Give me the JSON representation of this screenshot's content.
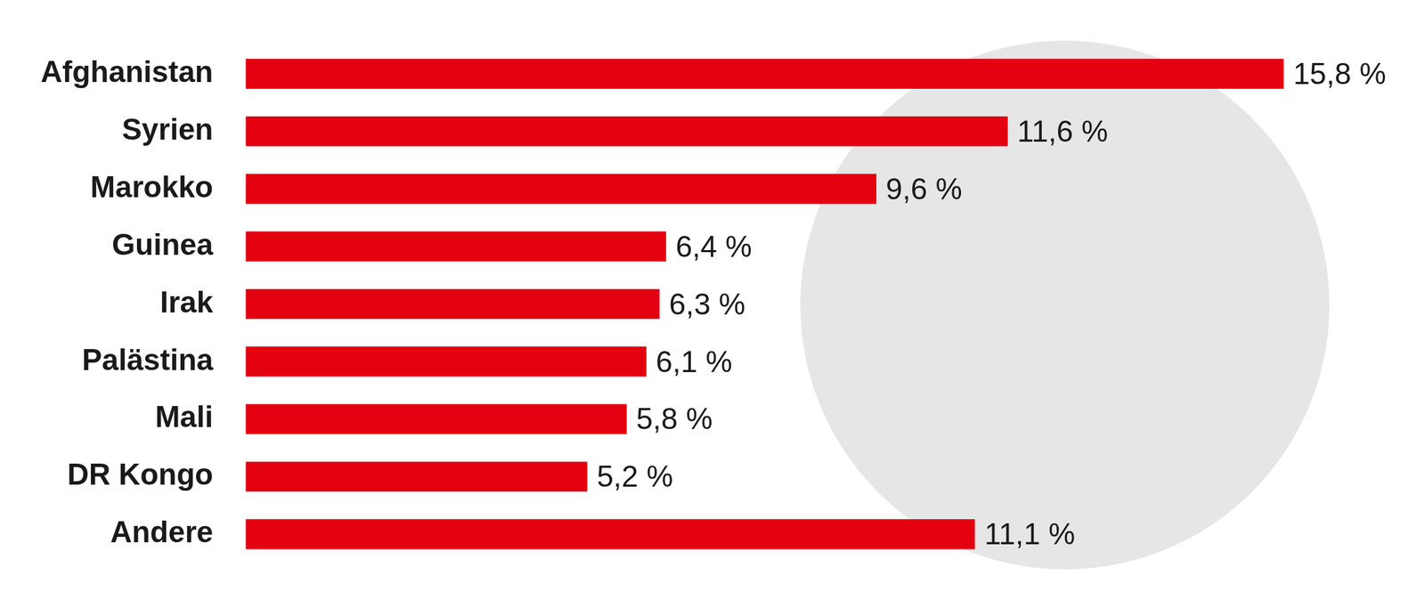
{
  "chart_data": {
    "type": "bar",
    "orientation": "horizontal",
    "categories": [
      "Afghanistan",
      "Syrien",
      "Marokko",
      "Guinea",
      "Irak",
      "Palästina",
      "Mali",
      "DR Kongo",
      "Andere"
    ],
    "values": [
      15.8,
      11.6,
      9.6,
      6.4,
      6.3,
      6.1,
      5.8,
      5.2,
      11.1
    ],
    "value_labels": [
      "15,8 %",
      "11,6 %",
      "9,6 %",
      "6,4 %",
      "6,3 %",
      "6,1 %",
      "5,8 %",
      "5,2 %",
      "11,1 %"
    ],
    "color": "#e3000f",
    "xlim": [
      0,
      16
    ],
    "grid": false,
    "data_labels": true,
    "tick_labels": "y"
  }
}
